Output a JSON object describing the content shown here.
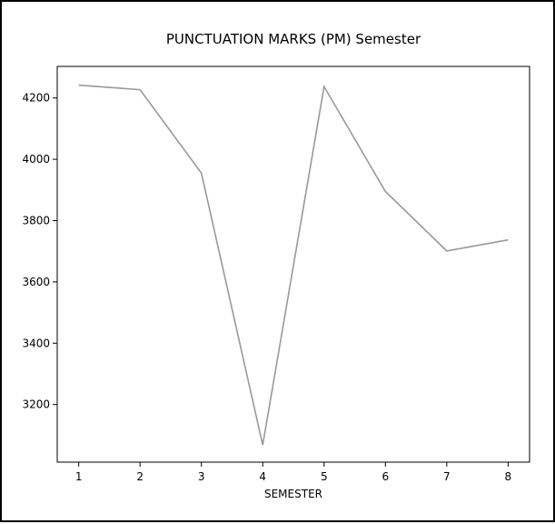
{
  "chart_data": {
    "type": "line",
    "title": "PUNCTUATION MARKS (PM) Semester",
    "xlabel": "SEMESTER",
    "ylabel": "",
    "x": [
      1,
      2,
      3,
      4,
      5,
      6,
      7,
      8
    ],
    "series": [
      {
        "values": [
          4242,
          4227,
          3955,
          3068,
          4237,
          3895,
          3701,
          3737
        ]
      }
    ],
    "xlim": [
      0.65,
      8.35
    ],
    "ylim": [
      3012,
      4303
    ],
    "xticks": [
      "1",
      "2",
      "3",
      "4",
      "5",
      "6",
      "7",
      "8"
    ],
    "yticks": [
      "3200",
      "3400",
      "3600",
      "3800",
      "4000",
      "4200"
    ],
    "grid": false,
    "line_color": "#999999"
  }
}
